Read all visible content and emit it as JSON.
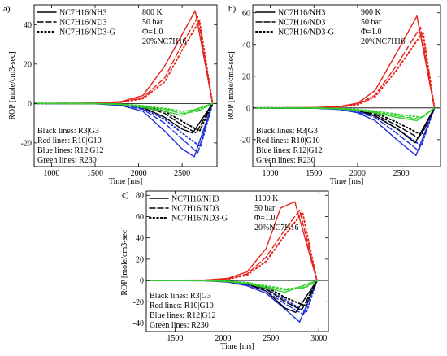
{
  "colors": {
    "black": "#000000",
    "red": "#e8221c",
    "blue": "#1f31d6",
    "green": "#35d12f"
  },
  "chart_data": [
    {
      "type": "line",
      "panel_label": "a)",
      "xlabel": "Time [ms]",
      "ylabel": "ROP [mole/cm3-sec]",
      "xlim": [
        800,
        2900
      ],
      "ylim": [
        -32,
        50
      ],
      "xticks": [
        1000,
        1500,
        2000,
        2500
      ],
      "yticks": [
        -20,
        0,
        20,
        40
      ],
      "legend": {
        "position": "top-left",
        "entries": [
          {
            "label": "NC7H16/NH3",
            "style": "solid"
          },
          {
            "label": "NC7H16/ND3",
            "style": "dashed"
          },
          {
            "label": "NC7H16/ND3-G",
            "style": "dotted"
          }
        ]
      },
      "conditions": [
        "800 K",
        "50 bar",
        "Φ=1.0",
        "20%NC7H16"
      ],
      "line_notes": [
        "Black lines: R3|G3",
        "Red lines: R10|G10",
        "Blue lines: R12|G12",
        "Green lines: R230"
      ],
      "series": [
        {
          "color": "red",
          "style": "solid",
          "x": [
            800,
            1500,
            1800,
            2050,
            2300,
            2500,
            2650,
            2850
          ],
          "y": [
            0,
            0.2,
            1,
            4,
            19,
            35,
            47,
            0
          ]
        },
        {
          "color": "red",
          "style": "dashed",
          "x": [
            800,
            1500,
            1800,
            2050,
            2300,
            2500,
            2680,
            2850
          ],
          "y": [
            0,
            0.1,
            0.8,
            3,
            13,
            30,
            44,
            0
          ]
        },
        {
          "color": "red",
          "style": "dotted",
          "x": [
            800,
            1500,
            1800,
            2050,
            2300,
            2500,
            2700,
            2850
          ],
          "y": [
            0,
            0.1,
            0.6,
            2.5,
            11,
            27,
            42,
            0
          ]
        },
        {
          "color": "blue",
          "style": "solid",
          "x": [
            800,
            1500,
            1800,
            2050,
            2300,
            2500,
            2640,
            2850
          ],
          "y": [
            0,
            -0.2,
            -1,
            -4,
            -14,
            -23,
            -27,
            0
          ]
        },
        {
          "color": "blue",
          "style": "dashed",
          "x": [
            800,
            1500,
            1800,
            2050,
            2300,
            2500,
            2680,
            2850
          ],
          "y": [
            0,
            -0.1,
            -0.8,
            -3,
            -10,
            -18,
            -25,
            0
          ]
        },
        {
          "color": "blue",
          "style": "dotted",
          "x": [
            800,
            1500,
            1800,
            2050,
            2300,
            2500,
            2710,
            2850
          ],
          "y": [
            0,
            -0.1,
            -0.6,
            -2.5,
            -8,
            -15,
            -22,
            0
          ]
        },
        {
          "color": "black",
          "style": "solid",
          "x": [
            800,
            1500,
            1800,
            2050,
            2300,
            2500,
            2620,
            2850
          ],
          "y": [
            0,
            -0.1,
            -0.5,
            -2,
            -7,
            -13,
            -15,
            0
          ]
        },
        {
          "color": "black",
          "style": "dashed",
          "x": [
            800,
            1500,
            1800,
            2050,
            2300,
            2500,
            2660,
            2850
          ],
          "y": [
            0,
            -0.1,
            -0.4,
            -1.5,
            -5,
            -11,
            -15,
            0
          ]
        },
        {
          "color": "black",
          "style": "dotted",
          "x": [
            800,
            1500,
            1800,
            2050,
            2300,
            2500,
            2700,
            2850
          ],
          "y": [
            0,
            0,
            -0.3,
            -1.2,
            -4,
            -9,
            -14,
            0
          ]
        },
        {
          "color": "green",
          "style": "solid",
          "x": [
            800,
            1500,
            1800,
            2050,
            2300,
            2500,
            2650,
            2850
          ],
          "y": [
            0,
            -0.1,
            -0.5,
            -2,
            -4,
            -6,
            -3,
            0
          ]
        },
        {
          "color": "green",
          "style": "dashed",
          "x": [
            800,
            1500,
            1800,
            2050,
            2300,
            2500,
            2680,
            2850
          ],
          "y": [
            0,
            -0.1,
            -0.4,
            -1.5,
            -3,
            -5,
            -4,
            0
          ]
        },
        {
          "color": "green",
          "style": "dotted",
          "x": [
            800,
            1500,
            1800,
            2050,
            2300,
            2500,
            2710,
            2850
          ],
          "y": [
            0,
            0,
            -0.3,
            -1.2,
            -2.5,
            -4,
            -3,
            0
          ]
        }
      ]
    },
    {
      "type": "line",
      "panel_label": "b)",
      "xlabel": "Time [ms]",
      "ylabel": "ROP [mole/cm3-sec]",
      "xlim": [
        800,
        2950
      ],
      "ylim": [
        -37,
        65
      ],
      "xticks": [
        1000,
        1500,
        2000,
        2500
      ],
      "yticks": [
        -20,
        0,
        20,
        40,
        60
      ],
      "legend": {
        "position": "top-left",
        "entries": [
          {
            "label": "NC7H16/NH3",
            "style": "solid"
          },
          {
            "label": "NC7H16/ND3",
            "style": "dashed"
          },
          {
            "label": "NC7H16/ND3-G",
            "style": "dotted"
          }
        ]
      },
      "conditions": [
        "900 K",
        "50 bar",
        "Φ=1.0",
        "20%NC7H16"
      ],
      "line_notes": [
        "Black lines: R3|G3",
        "Red lines: R10|G10",
        "Blue lines: R12|G12",
        "Green lines: R230"
      ],
      "series": [
        {
          "color": "red",
          "style": "solid",
          "x": [
            800,
            1500,
            1800,
            2000,
            2200,
            2450,
            2680,
            2880
          ],
          "y": [
            0,
            0.2,
            1,
            3,
            11,
            35,
            58,
            0
          ]
        },
        {
          "color": "red",
          "style": "dashed",
          "x": [
            800,
            1500,
            1800,
            2000,
            2200,
            2450,
            2720,
            2880
          ],
          "y": [
            0,
            0.1,
            0.8,
            2.5,
            8,
            27,
            51,
            0
          ]
        },
        {
          "color": "red",
          "style": "dotted",
          "x": [
            800,
            1500,
            1800,
            2000,
            2200,
            2450,
            2750,
            2880
          ],
          "y": [
            0,
            0.1,
            0.6,
            2,
            7,
            24,
            48,
            0
          ]
        },
        {
          "color": "blue",
          "style": "solid",
          "x": [
            800,
            1500,
            1800,
            2000,
            2200,
            2450,
            2670,
            2880
          ],
          "y": [
            0,
            -0.2,
            -1,
            -3,
            -8,
            -20,
            -30,
            0
          ]
        },
        {
          "color": "blue",
          "style": "dashed",
          "x": [
            800,
            1500,
            1800,
            2000,
            2200,
            2450,
            2700,
            2880
          ],
          "y": [
            0,
            -0.1,
            -0.8,
            -2.5,
            -6,
            -16,
            -27,
            0
          ]
        },
        {
          "color": "blue",
          "style": "dotted",
          "x": [
            800,
            1500,
            1800,
            2000,
            2200,
            2450,
            2730,
            2880
          ],
          "y": [
            0,
            -0.1,
            -0.6,
            -2,
            -5,
            -13,
            -24,
            0
          ]
        },
        {
          "color": "black",
          "style": "solid",
          "x": [
            800,
            1500,
            1800,
            2000,
            2200,
            2450,
            2660,
            2880
          ],
          "y": [
            0,
            -0.1,
            -0.5,
            -1.5,
            -5,
            -13,
            -22,
            0
          ]
        },
        {
          "color": "black",
          "style": "dashed",
          "x": [
            800,
            1500,
            1800,
            2000,
            2200,
            2450,
            2700,
            2880
          ],
          "y": [
            0,
            -0.1,
            -0.4,
            -1.2,
            -4,
            -11,
            -19,
            0
          ]
        },
        {
          "color": "black",
          "style": "dotted",
          "x": [
            800,
            1500,
            1800,
            2000,
            2200,
            2450,
            2730,
            2880
          ],
          "y": [
            0,
            0,
            -0.3,
            -1,
            -3,
            -9,
            -17,
            0
          ]
        },
        {
          "color": "green",
          "style": "solid",
          "x": [
            800,
            1500,
            1800,
            2000,
            2200,
            2450,
            2680,
            2880
          ],
          "y": [
            0,
            -0.1,
            -0.6,
            -1.5,
            -3,
            -6,
            -8,
            0
          ]
        },
        {
          "color": "green",
          "style": "dashed",
          "x": [
            800,
            1500,
            1800,
            2000,
            2200,
            2450,
            2710,
            2880
          ],
          "y": [
            0,
            -0.1,
            -0.4,
            -1.2,
            -2.5,
            -5,
            -7,
            0
          ]
        },
        {
          "color": "green",
          "style": "dotted",
          "x": [
            800,
            1500,
            1800,
            2000,
            2200,
            2450,
            2740,
            2880
          ],
          "y": [
            0,
            0,
            -0.3,
            -1,
            -2,
            -4,
            -6,
            0
          ]
        }
      ]
    },
    {
      "type": "line",
      "panel_label": "c)",
      "xlabel": "Time [ms]",
      "ylabel": "ROP [mole/cm3-sec]",
      "xlim": [
        1200,
        3100
      ],
      "ylim": [
        -48,
        84
      ],
      "xticks": [
        1500,
        2000,
        2500,
        3000
      ],
      "yticks": [
        -40,
        -20,
        0,
        20,
        40,
        60,
        80
      ],
      "legend": {
        "position": "top-left",
        "entries": [
          {
            "label": "NC7H16/NH3",
            "style": "solid"
          },
          {
            "label": "NC7H16/ND3",
            "style": "dashed"
          },
          {
            "label": "NC7H16/ND3-G",
            "style": "dotted"
          }
        ]
      },
      "conditions": [
        "1100 K",
        "50 bar",
        "Φ=1.0",
        "20%NC7H16"
      ],
      "line_notes": [
        "Black lines: R3|G3",
        "Red lines: R10|G10",
        "Blue lines: R12|G12",
        "Green lines: R230"
      ],
      "series": [
        {
          "color": "red",
          "style": "solid",
          "x": [
            1200,
            1800,
            2050,
            2250,
            2450,
            2600,
            2750,
            2980
          ],
          "y": [
            0,
            0.3,
            2,
            8,
            30,
            68,
            74,
            0
          ]
        },
        {
          "color": "red",
          "style": "dashed",
          "x": [
            1200,
            1800,
            2050,
            2250,
            2450,
            2650,
            2800,
            2980
          ],
          "y": [
            0,
            0.2,
            1.5,
            6,
            22,
            48,
            66,
            0
          ]
        },
        {
          "color": "red",
          "style": "dotted",
          "x": [
            1200,
            1800,
            2050,
            2250,
            2450,
            2650,
            2830,
            2980
          ],
          "y": [
            0,
            0.2,
            1.2,
            5,
            18,
            43,
            64,
            0
          ]
        },
        {
          "color": "blue",
          "style": "solid",
          "x": [
            1200,
            1800,
            2050,
            2250,
            2450,
            2650,
            2800,
            2980
          ],
          "y": [
            0,
            -0.2,
            -1.5,
            -5,
            -12,
            -27,
            -39,
            0
          ]
        },
        {
          "color": "blue",
          "style": "dashed",
          "x": [
            1200,
            1800,
            2050,
            2250,
            2450,
            2650,
            2840,
            2980
          ],
          "y": [
            0,
            -0.1,
            -1,
            -4,
            -10,
            -22,
            -32,
            0
          ]
        },
        {
          "color": "blue",
          "style": "dotted",
          "x": [
            1200,
            1800,
            2050,
            2250,
            2450,
            2650,
            2870,
            2980
          ],
          "y": [
            0,
            -0.1,
            -0.8,
            -3,
            -8,
            -18,
            -30,
            0
          ]
        },
        {
          "color": "black",
          "style": "solid",
          "x": [
            1200,
            1800,
            2050,
            2250,
            2450,
            2650,
            2760,
            2980
          ],
          "y": [
            0,
            -0.1,
            -1,
            -3,
            -10,
            -26,
            -30,
            0
          ]
        },
        {
          "color": "black",
          "style": "dashed",
          "x": [
            1200,
            1800,
            2050,
            2250,
            2450,
            2650,
            2820,
            2980
          ],
          "y": [
            0,
            -0.1,
            -0.8,
            -2.5,
            -8,
            -20,
            -28,
            0
          ]
        },
        {
          "color": "black",
          "style": "dotted",
          "x": [
            1200,
            1800,
            2050,
            2250,
            2450,
            2650,
            2860,
            2980
          ],
          "y": [
            0,
            0,
            -0.6,
            -2,
            -6,
            -16,
            -24,
            0
          ]
        },
        {
          "color": "green",
          "style": "solid",
          "x": [
            1200,
            1800,
            2050,
            2250,
            2450,
            2650,
            2800,
            2980
          ],
          "y": [
            0,
            -0.1,
            -1,
            -3,
            -7,
            -11,
            -6,
            0
          ]
        },
        {
          "color": "green",
          "style": "dashed",
          "x": [
            1200,
            1800,
            2050,
            2250,
            2450,
            2650,
            2840,
            2980
          ],
          "y": [
            0,
            -0.1,
            -0.8,
            -2.5,
            -6,
            -9,
            -7,
            0
          ]
        },
        {
          "color": "green",
          "style": "dotted",
          "x": [
            1200,
            1800,
            2050,
            2250,
            2450,
            2650,
            2870,
            2980
          ],
          "y": [
            0,
            0,
            -0.6,
            -2,
            -5,
            -8,
            -6,
            0
          ]
        }
      ]
    }
  ]
}
